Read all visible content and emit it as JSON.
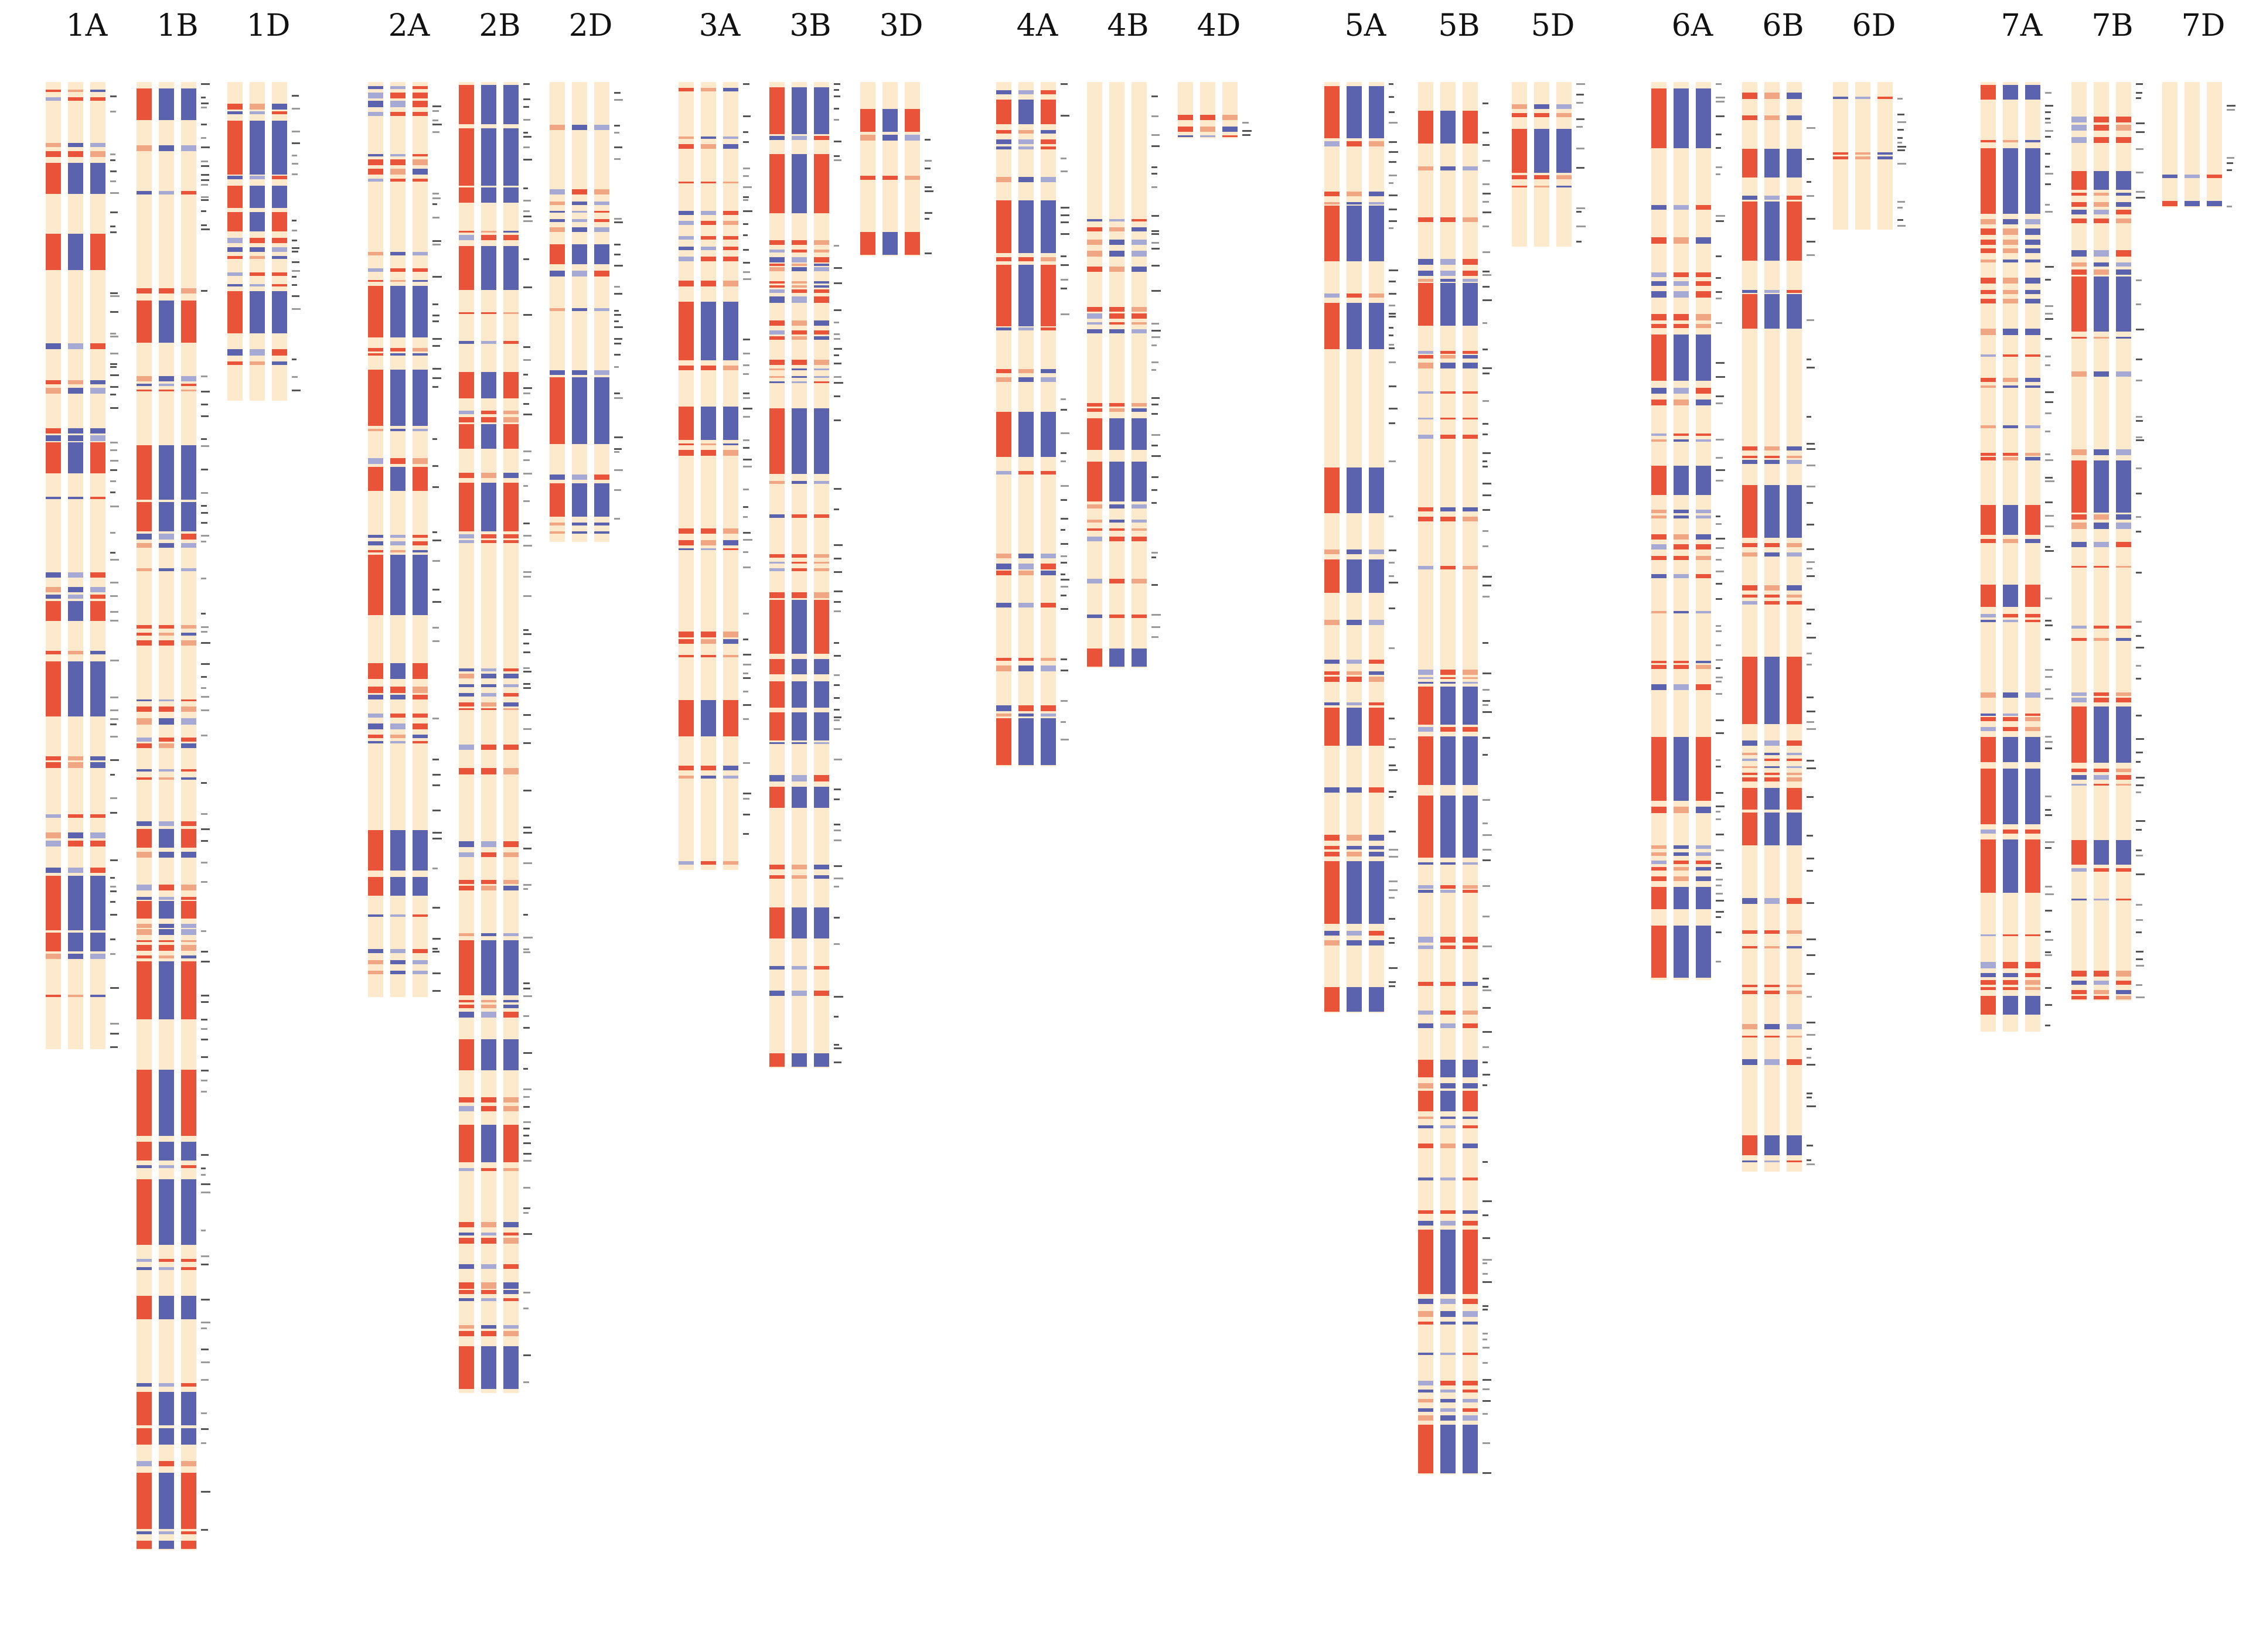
{
  "figure": {
    "background": "#ffffff",
    "colors": {
      "base": "#fde9cc",
      "red": "#e8533a",
      "red_light": "#f0a583",
      "blue": "#5b63ae",
      "blue_light": "#a6a9d4",
      "marker": "#555555",
      "marker_light": "#9a9a9a"
    },
    "chromosomes": [
      {
        "label": "1A",
        "length": 0.616,
        "seed": 11
      },
      {
        "label": "1B",
        "length": 0.935,
        "seed": 12
      },
      {
        "label": "1D",
        "length": 0.203,
        "seed": 13
      },
      {
        "label": "2A",
        "length": 0.583,
        "seed": 21
      },
      {
        "label": "2B",
        "length": 0.835,
        "seed": 22
      },
      {
        "label": "2D",
        "length": 0.293,
        "seed": 23
      },
      {
        "label": "3A",
        "length": 0.502,
        "seed": 31
      },
      {
        "label": "3B",
        "length": 0.628,
        "seed": 32
      },
      {
        "label": "3D",
        "length": 0.111,
        "seed": 33
      },
      {
        "label": "4A",
        "length": 0.436,
        "seed": 41
      },
      {
        "label": "4B",
        "length": 0.373,
        "seed": 42
      },
      {
        "label": "4D",
        "length": 0.036,
        "seed": 43
      },
      {
        "label": "5A",
        "length": 0.593,
        "seed": 51
      },
      {
        "label": "5B",
        "length": 0.887,
        "seed": 52
      },
      {
        "label": "5D",
        "length": 0.105,
        "seed": 53
      },
      {
        "label": "6A",
        "length": 0.572,
        "seed": 61
      },
      {
        "label": "6B",
        "length": 0.694,
        "seed": 62
      },
      {
        "label": "6D",
        "length": 0.094,
        "seed": 63
      },
      {
        "label": "7A",
        "length": 0.605,
        "seed": 71
      },
      {
        "label": "7B",
        "length": 0.585,
        "seed": 72
      },
      {
        "label": "7D",
        "length": 0.08,
        "seed": 73
      }
    ]
  }
}
